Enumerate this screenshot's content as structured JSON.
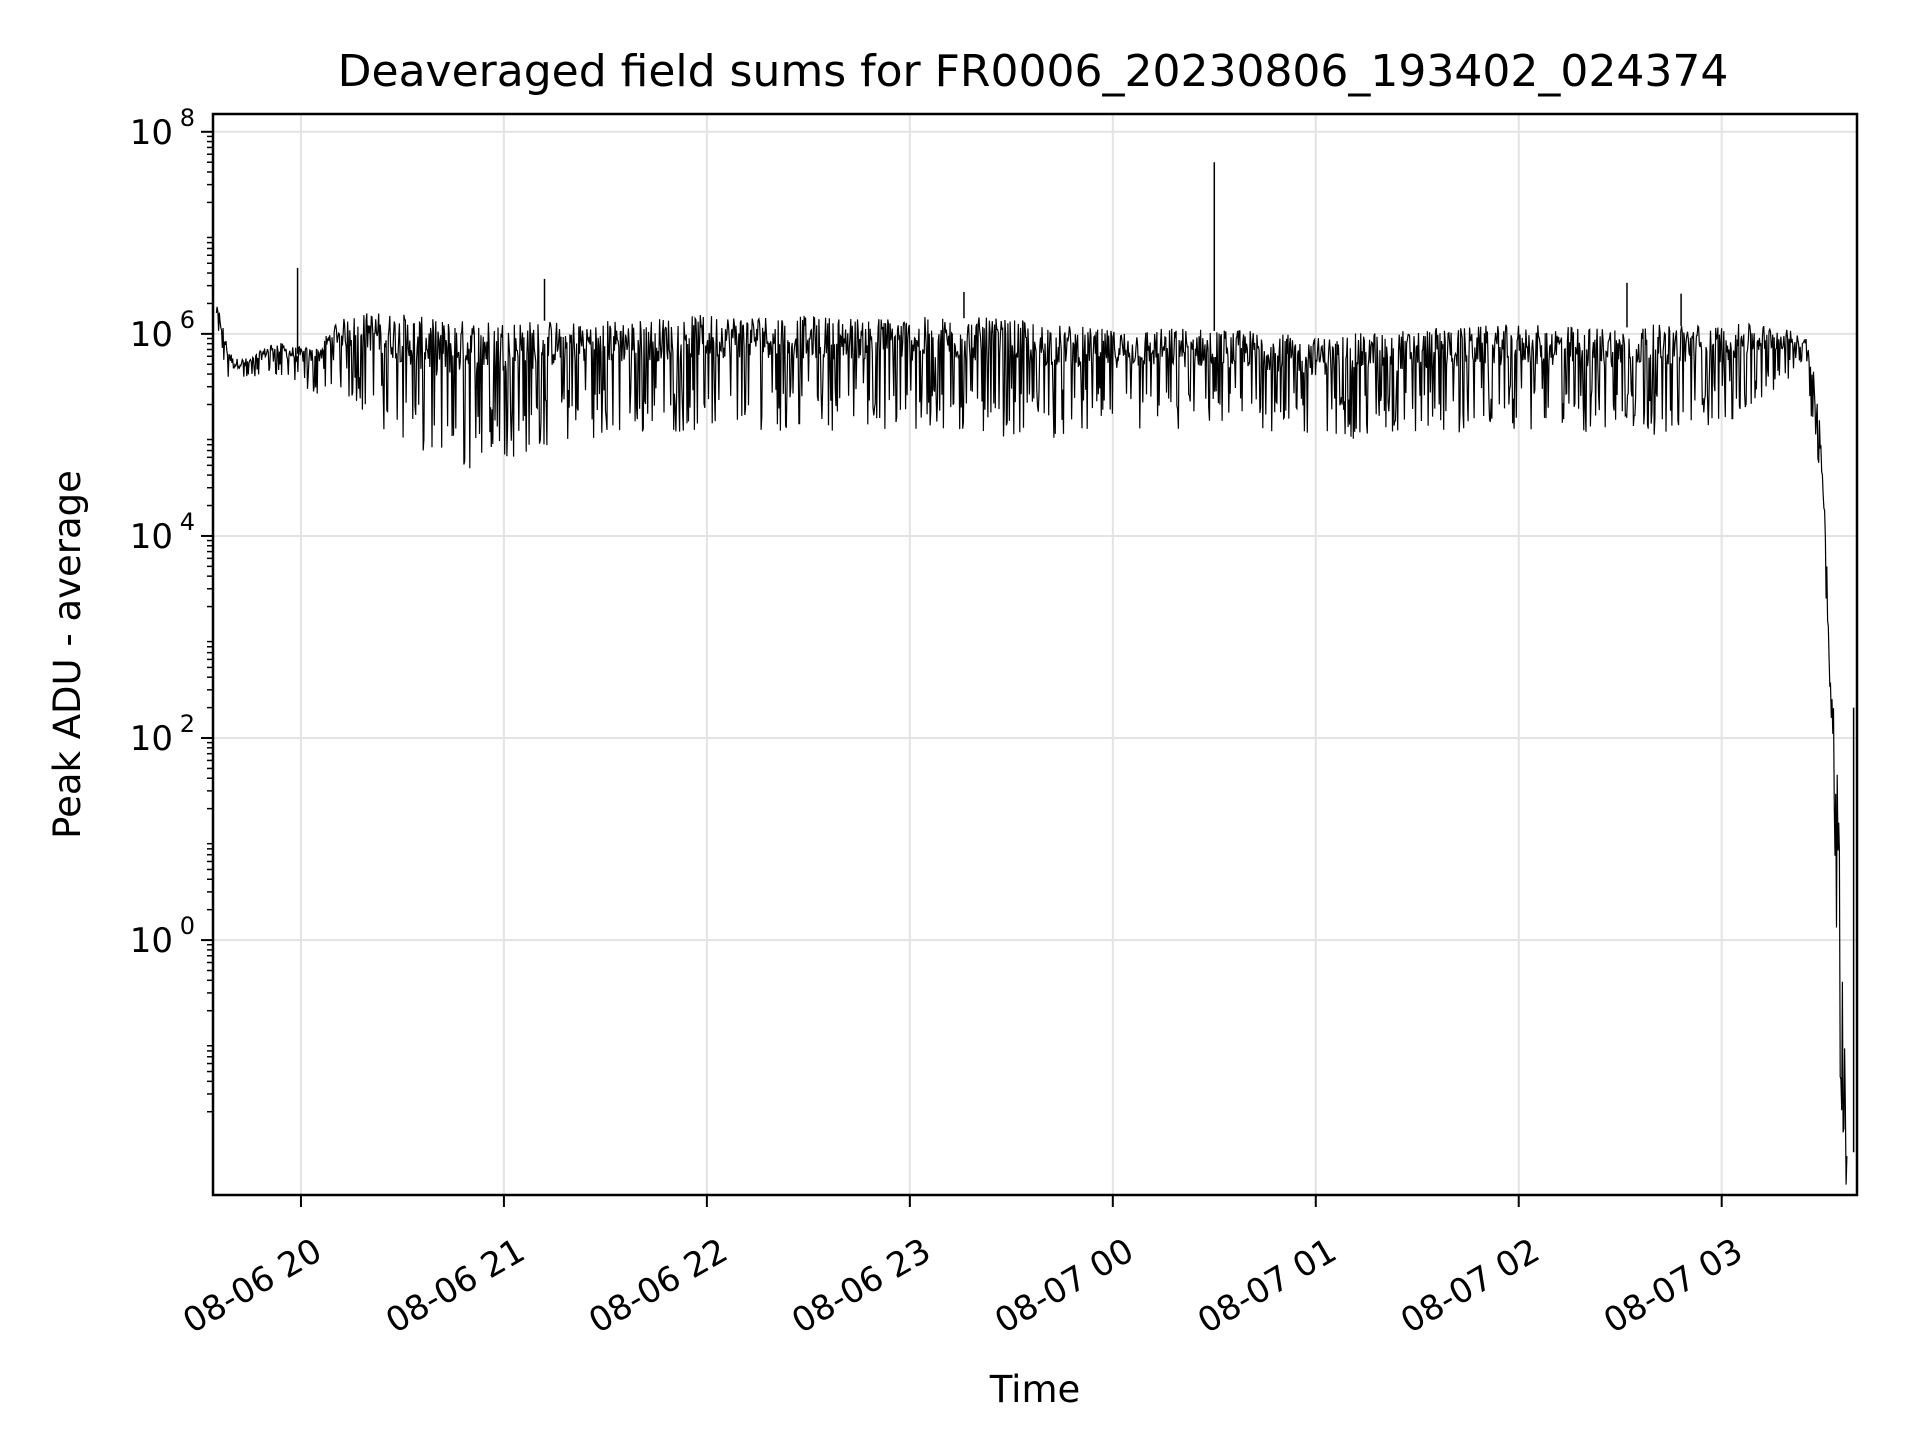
{
  "chart_data": {
    "type": "line",
    "title": "Deaveraged field sums for FR0006_20230806_193402_024374",
    "xlabel": "Time",
    "ylabel": "Peak ADU - average",
    "yscale": "log",
    "ylim": [
      0.003,
      150000000
    ],
    "xlim": [
      "2023-08-06 19:34",
      "2023-08-07 03:40"
    ],
    "grid": true,
    "line_color": "#000000",
    "x_ticks": [
      "08-06 20",
      "08-06 21",
      "08-06 22",
      "08-06 23",
      "08-07 00",
      "08-07 01",
      "08-07 02",
      "08-07 03"
    ],
    "y_ticks": [
      {
        "value": 1,
        "base": "10",
        "exp": "0"
      },
      {
        "value": 100,
        "base": "10",
        "exp": "2"
      },
      {
        "value": 10000,
        "base": "10",
        "exp": "4"
      },
      {
        "value": 1000000,
        "base": "10",
        "exp": "6"
      },
      {
        "value": 100000000,
        "base": "10",
        "exp": "8"
      }
    ],
    "series": [
      {
        "x": [
          "2023-08-06 19:35",
          "2023-08-06 19:36",
          "2023-08-06 19:38",
          "2023-08-06 19:40",
          "2023-08-06 19:45",
          "2023-08-06 19:52",
          "2023-08-06 19:58",
          "2023-08-06 20:05",
          "2023-08-06 20:10",
          "2023-08-06 20:20",
          "2023-08-06 20:30",
          "2023-08-06 20:40",
          "2023-08-06 20:50",
          "2023-08-06 21:00",
          "2023-08-06 21:10",
          "2023-08-06 21:20",
          "2023-08-06 21:40",
          "2023-08-06 22:00",
          "2023-08-06 22:20",
          "2023-08-06 22:40",
          "2023-08-06 23:00",
          "2023-08-06 23:20",
          "2023-08-06 23:40",
          "2023-08-07 00:00",
          "2023-08-07 00:20",
          "2023-08-07 00:40",
          "2023-08-07 01:00",
          "2023-08-07 01:20",
          "2023-08-07 01:40",
          "2023-08-07 02:00",
          "2023-08-07 02:20",
          "2023-08-07 02:40",
          "2023-08-07 03:00",
          "2023-08-07 03:15",
          "2023-08-07 03:25",
          "2023-08-07 03:27",
          "2023-08-07 03:29",
          "2023-08-07 03:31",
          "2023-08-07 03:32",
          "2023-08-07 03:33",
          "2023-08-07 03:34",
          "2023-08-07 03:35",
          "2023-08-07 03:36",
          "2023-08-07 03:37"
        ],
        "y_low": [
          1000000,
          700000,
          350000,
          300000,
          350000,
          400000,
          300000,
          250000,
          300000,
          150000,
          80000,
          45000,
          45000,
          55000,
          70000,
          90000,
          100000,
          110000,
          110000,
          110000,
          100000,
          100000,
          90000,
          110000,
          100000,
          110000,
          90000,
          90000,
          100000,
          110000,
          100000,
          100000,
          120000,
          250000,
          500000,
          100000,
          30000,
          2000,
          100,
          10,
          1,
          0.01,
          0.003,
          0.003
        ],
        "y_high": [
          2000000,
          1800000,
          900000,
          600000,
          600000,
          900000,
          800000,
          800000,
          1500000,
          2000000,
          2000000,
          1800000,
          1800000,
          1800000,
          1700000,
          1700000,
          1700000,
          1900000,
          1900000,
          1800000,
          1800000,
          1800000,
          1600000,
          1300000,
          1400000,
          1300000,
          1100000,
          1300000,
          1400000,
          1500000,
          1400000,
          1500000,
          1500000,
          1400000,
          1000000,
          600000,
          150000,
          10000,
          500,
          300,
          150,
          30,
          0.5,
          0.01
        ]
      }
    ],
    "spikes": [
      {
        "x": "2023-08-06 19:59",
        "y": 4500000
      },
      {
        "x": "2023-08-06 21:12",
        "y": 3500000
      },
      {
        "x": "2023-08-06 23:16",
        "y": 2600000
      },
      {
        "x": "2023-08-07 00:30",
        "y": 50000000
      },
      {
        "x": "2023-08-07 02:32",
        "y": 3200000
      },
      {
        "x": "2023-08-07 02:48",
        "y": 2500000
      },
      {
        "x": "2023-08-07 03:39",
        "y": 200
      }
    ]
  }
}
